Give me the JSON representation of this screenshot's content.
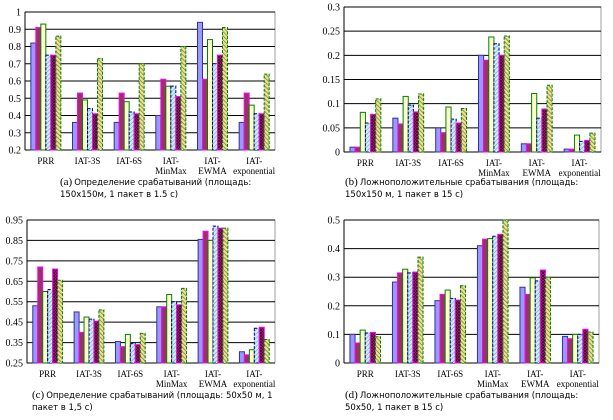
{
  "colors": {
    "series": [
      "#9999ff",
      "#993366",
      "#ffffcc",
      "#ccecff",
      "#800060",
      "#b8a030"
    ],
    "borders": [
      "#333399",
      "#ff00ff",
      "#008000",
      "#000080",
      "#ff00ff",
      "#008000"
    ],
    "grid": "#000000"
  },
  "chart_data": [
    {
      "id": "a",
      "type": "bar",
      "categories": [
        "PRR",
        "IAT-3S",
        "IAT-6S",
        "IAT-MinMax",
        "IAT-EWMA",
        "IAT-exponential"
      ],
      "series": [
        {
          "values": [
            0.82,
            0.36,
            0.36,
            0.4,
            0.94,
            0.36
          ]
        },
        {
          "values": [
            0.91,
            0.53,
            0.53,
            0.61,
            0.61,
            0.53
          ]
        },
        {
          "values": [
            0.93,
            0.49,
            0.48,
            0.57,
            0.84,
            0.46
          ]
        },
        {
          "values": [
            0.75,
            0.44,
            0.42,
            0.57,
            0.7,
            0.41
          ]
        },
        {
          "values": [
            0.75,
            0.41,
            0.41,
            0.51,
            0.75,
            0.41
          ]
        },
        {
          "values": [
            0.86,
            0.73,
            0.7,
            0.8,
            0.91,
            0.64
          ]
        }
      ],
      "ylim": [
        0.2,
        1.0
      ],
      "yticks": [
        "0.2",
        "0.3",
        "0.4",
        "0.5",
        "0.6",
        "0.7",
        "0.8",
        "0.9",
        "1"
      ],
      "grid": true,
      "caption_label": "(a)",
      "caption": "Определение срабатываний (площадь: 150x150м, 1 пакет в 1.5 с)"
    },
    {
      "id": "b",
      "type": "bar",
      "categories": [
        "PRR",
        "IAT-3S",
        "IAT-6S",
        "IAT-MinMax",
        "IAT-EWMA",
        "IAT-exponential"
      ],
      "series": [
        {
          "values": [
            0.01,
            0.07,
            0.05,
            0.2,
            0.017,
            0.006
          ]
        },
        {
          "values": [
            0.01,
            0.058,
            0.04,
            0.19,
            0.017,
            0.006
          ]
        },
        {
          "values": [
            0.082,
            0.115,
            0.093,
            0.238,
            0.121,
            0.035
          ]
        },
        {
          "values": [
            0.06,
            0.097,
            0.068,
            0.224,
            0.07,
            0.022
          ]
        },
        {
          "values": [
            0.078,
            0.083,
            0.06,
            0.2,
            0.089,
            0.024
          ]
        },
        {
          "values": [
            0.11,
            0.12,
            0.09,
            0.24,
            0.138,
            0.039
          ]
        }
      ],
      "ylim": [
        0,
        0.3
      ],
      "yticks": [
        "0",
        "0.05",
        "0.1",
        "0.15",
        "0.2",
        "0.25",
        "0.3"
      ],
      "grid": true,
      "caption_label": "(b)",
      "caption": "Ложноположительные срабатывания (площадь: 150x150 м, 1 пакет в 15 с)"
    },
    {
      "id": "c",
      "type": "bar",
      "categories": [
        "PRR",
        "IAT-3S",
        "IAT-6S",
        "IAT-MinMax",
        "IAT-EWMA",
        "IAT-exponential"
      ],
      "series": [
        {
          "values": [
            0.53,
            0.5,
            0.355,
            0.525,
            0.855,
            0.305
          ]
        },
        {
          "values": [
            0.72,
            0.4,
            0.33,
            0.525,
            0.895,
            0.29
          ]
        },
        {
          "values": [
            0.6,
            0.475,
            0.39,
            0.585,
            0.85,
            0.315
          ]
        },
        {
          "values": [
            0.61,
            0.465,
            0.345,
            0.55,
            0.92,
            0.42
          ]
        },
        {
          "values": [
            0.71,
            0.455,
            0.34,
            0.535,
            0.91,
            0.425
          ]
        },
        {
          "values": [
            0.655,
            0.51,
            0.395,
            0.615,
            0.91,
            0.365
          ]
        }
      ],
      "ylim": [
        0.25,
        0.95
      ],
      "yticks": [
        "0.25",
        "0.35",
        "0.45",
        "0.55",
        "0.65",
        "0.75",
        "0.85",
        "0.95"
      ],
      "grid": true,
      "caption_label": "(c)",
      "caption": "Определение срабатываний (площадь: 50x50 м, 1 пакет в 1,5 с)"
    },
    {
      "id": "d",
      "type": "bar",
      "categories": [
        "PRR",
        "IAT-3S",
        "IAT-6S",
        "IAT-MinMax",
        "IAT-EWMA",
        "IAT-exponential"
      ],
      "series": [
        {
          "values": [
            0.1,
            0.283,
            0.218,
            0.41,
            0.265,
            0.093
          ]
        },
        {
          "values": [
            0.07,
            0.315,
            0.24,
            0.433,
            0.24,
            0.085
          ]
        },
        {
          "values": [
            0.115,
            0.328,
            0.255,
            0.435,
            0.298,
            0.1
          ]
        },
        {
          "values": [
            0.105,
            0.315,
            0.226,
            0.443,
            0.287,
            0.1
          ]
        },
        {
          "values": [
            0.107,
            0.318,
            0.22,
            0.45,
            0.325,
            0.118
          ]
        },
        {
          "values": [
            0.092,
            0.37,
            0.27,
            0.5,
            0.3,
            0.108
          ]
        }
      ],
      "ylim": [
        0,
        0.5
      ],
      "yticks": [
        "0",
        "0.1",
        "0.2",
        "0.3",
        "0.4",
        "0.5"
      ],
      "grid": true,
      "caption_label": "(d)",
      "caption": "Ложноположительные срабатывания (площадь: 50x50, 1 пакет в 15 с)"
    }
  ]
}
